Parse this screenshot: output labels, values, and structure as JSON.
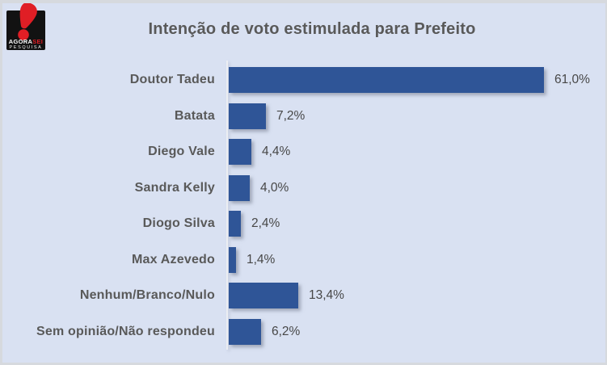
{
  "logo": {
    "brand_primary": "AGORA",
    "brand_accent": "SEI",
    "subtitle": "PESQUISA",
    "colors": {
      "red": "#e01e25",
      "black": "#121212"
    }
  },
  "header": {
    "title": "Intenção de voto estimulada para Prefeito"
  },
  "chart_data": {
    "type": "bar",
    "orientation": "horizontal",
    "title": "Intenção de voto estimulada para Prefeito",
    "categories": [
      "Doutor Tadeu",
      "Batata",
      "Diego Vale",
      "Sandra Kelly",
      "Diogo Silva",
      "Max Azevedo",
      "Nenhum/Branco/Nulo",
      "Sem opinião/Não respondeu"
    ],
    "values": [
      61.0,
      7.2,
      4.4,
      4.0,
      2.4,
      1.4,
      13.4,
      6.2
    ],
    "labels": [
      "61,0%",
      "7,2%",
      "4,4%",
      "4,0%",
      "2,4%",
      "1,4%",
      "13,4%",
      "6,2%"
    ],
    "unit": "%",
    "xlim": [
      0,
      70
    ],
    "gridlines": false,
    "legend": "none",
    "value_label_position": "outside-end",
    "bar_color": "#2f5597",
    "background_color": "#d9e1f2",
    "text_color": "#595959"
  }
}
